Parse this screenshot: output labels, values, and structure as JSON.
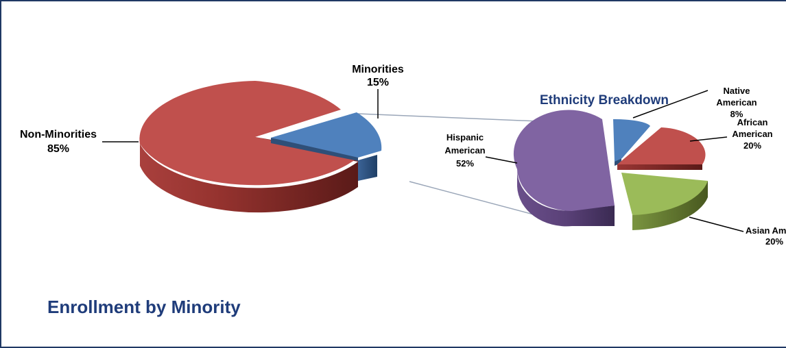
{
  "title": "Enrollment by Minority",
  "colors": {
    "red": "#c0504d",
    "blue": "#4f81bd",
    "green": "#9bbb59",
    "purple": "#8064a2",
    "title": "#1f3c7a"
  },
  "chart_data": [
    {
      "type": "pie",
      "style": "3d-exploded",
      "title": "",
      "slices": [
        {
          "name": "Non-Minorities",
          "pct_label": "85%",
          "value": 85,
          "color": "#c0504d"
        },
        {
          "name": "Minorities",
          "pct_label": "15%",
          "value": 15,
          "color": "#4f81bd"
        }
      ]
    },
    {
      "type": "pie",
      "style": "3d-exploded",
      "title": "Ethnicity Breakdown",
      "slices": [
        {
          "name": "Native American",
          "name_lines": [
            "Native",
            "American"
          ],
          "pct_label": "8%",
          "value": 8,
          "color": "#4f81bd"
        },
        {
          "name": "African American",
          "name_lines": [
            "African",
            "American"
          ],
          "pct_label": "20%",
          "value": 20,
          "color": "#c0504d"
        },
        {
          "name": "Asian American",
          "name_lines": [
            "Asian American"
          ],
          "pct_label": "20%",
          "value": 20,
          "color": "#9bbb59"
        },
        {
          "name": "Hispanic American",
          "name_lines": [
            "Hispanic",
            "American"
          ],
          "pct_label": "52%",
          "value": 52,
          "color": "#8064a2"
        }
      ]
    }
  ]
}
